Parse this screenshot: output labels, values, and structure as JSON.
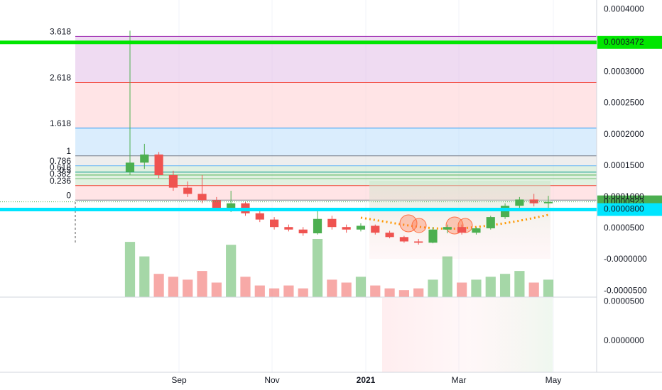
{
  "chart_data": {
    "type": "candlestick",
    "ylim": [
      -6e-05,
      0.000415
    ],
    "yticks": [
      {
        "value": 0.0004,
        "label": "0.0004000"
      },
      {
        "value": 0.0003,
        "label": "0.0003000"
      },
      {
        "value": 0.00025,
        "label": "0.0002500"
      },
      {
        "value": 0.0002,
        "label": "0.0002000"
      },
      {
        "value": 0.00015,
        "label": "0.0001500"
      },
      {
        "value": 0.0001,
        "label": "0.0001000"
      },
      {
        "value": 5e-05,
        "label": "0.0000500"
      },
      {
        "value": 0,
        "label": "-0.0000000"
      },
      {
        "value": -5e-05,
        "label": "-0.0000500"
      }
    ],
    "y2lim": [
      -4e-05,
      5.5e-05
    ],
    "y2ticks": [
      {
        "value": 5e-05,
        "label": "0.0000500"
      },
      {
        "value": 0,
        "label": "0.0000000"
      }
    ],
    "x_labels": [
      "Sep",
      "Nov",
      "2021",
      "Mar",
      "May"
    ],
    "grid": true,
    "up_color": "#4caf50",
    "down_color": "#ef5350",
    "open": [
      0.00014,
      0.000155,
      0.000168,
      0.000135,
      0.000115,
      0.000105,
      9.5e-05,
      8.2e-05,
      9e-05,
      7.4e-05,
      6.4e-05,
      5.2e-05,
      4.8e-05,
      4.2e-05,
      6.5e-05,
      5.2e-05,
      4.8e-05,
      5.4e-05,
      4.3e-05,
      3.6e-05,
      2.9e-05,
      2.7e-05,
      4.8e-05,
      5.2e-05,
      4.3e-05,
      5e-05,
      6.8e-05,
      8.6e-05,
      9.6e-05,
      9e-05
    ],
    "high": [
      0.000366,
      0.000185,
      0.000172,
      0.000142,
      0.000125,
      0.000135,
      0.0001,
      0.00011,
      9.2e-05,
      7.8e-05,
      6.8e-05,
      5.6e-05,
      5.2e-05,
      8e-05,
      7e-05,
      5.6e-05,
      5.8e-05,
      5.6e-05,
      4.6e-05,
      3.8e-05,
      3.3e-05,
      5.2e-05,
      5.6e-05,
      5.6e-05,
      5.2e-05,
      7e-05,
      9e-05,
      0.0001,
      0.000105,
      0.000102
    ],
    "low": [
      0.000135,
      0.000145,
      0.00013,
      0.00011,
      0.0001,
      9e-05,
      7.8e-05,
      7.6e-05,
      7e-05,
      6e-05,
      4.8e-05,
      4.5e-05,
      3.8e-05,
      4e-05,
      4.8e-05,
      4.3e-05,
      4.5e-05,
      4e-05,
      3.4e-05,
      2.7e-05,
      2.4e-05,
      2.6e-05,
      4.2e-05,
      4e-05,
      4e-05,
      4.8e-05,
      6.5e-05,
      8.2e-05,
      8.5e-05,
      7.8e-05
    ],
    "close": [
      0.000155,
      0.000168,
      0.000135,
      0.000115,
      0.000105,
      9.5e-05,
      8.2e-05,
      9e-05,
      7.4e-05,
      6.4e-05,
      5.2e-05,
      4.8e-05,
      4.2e-05,
      6.5e-05,
      5.2e-05,
      4.8e-05,
      5.4e-05,
      4.3e-05,
      3.6e-05,
      2.9e-05,
      2.7e-05,
      4.8e-05,
      5.2e-05,
      4.3e-05,
      5e-05,
      6.8e-05,
      8.6e-05,
      9.6e-05,
      9e-05,
      9.23e-05
    ],
    "volume": [
      95,
      70,
      40,
      35,
      30,
      45,
      25,
      90,
      35,
      20,
      15,
      20,
      15,
      100,
      30,
      25,
      35,
      20,
      15,
      12,
      15,
      30,
      70,
      25,
      30,
      35,
      40,
      45,
      25,
      30
    ],
    "fib": [
      {
        "level": 3.618,
        "price": 0.0003568,
        "color": "#9c27b0"
      },
      {
        "level": 2.618,
        "price": 0.000283,
        "color": "#f44336"
      },
      {
        "level": 1.618,
        "price": 0.0002102,
        "color": "#2196f3"
      },
      {
        "level": 1,
        "price": 0.0001659,
        "color": "#787b86"
      },
      {
        "level": 0.786,
        "price": 0.00015,
        "color": "#64b5f6"
      },
      {
        "level": 0.618,
        "price": 0.0001398,
        "color": "#009688"
      },
      {
        "level": 0.5,
        "price": 0.0001352,
        "color": "#4caf50"
      },
      {
        "level": 0.382,
        "price": 0.0001295,
        "color": "#81c784"
      },
      {
        "level": 0.236,
        "price": 0.0001182,
        "color": "#f44336"
      },
      {
        "level": 0,
        "price": 9.5e-05,
        "color": "#787b86"
      }
    ],
    "price_lines": [
      {
        "value": 0.0003472,
        "color": "#00e600"
      },
      {
        "value": 9.23e-05,
        "color": "#4caf50"
      },
      {
        "value": {
          "value": 8e-05,
          "label": "0.0000800"
        },
        "color": "#00e5ff"
      }
    ]
  }
}
